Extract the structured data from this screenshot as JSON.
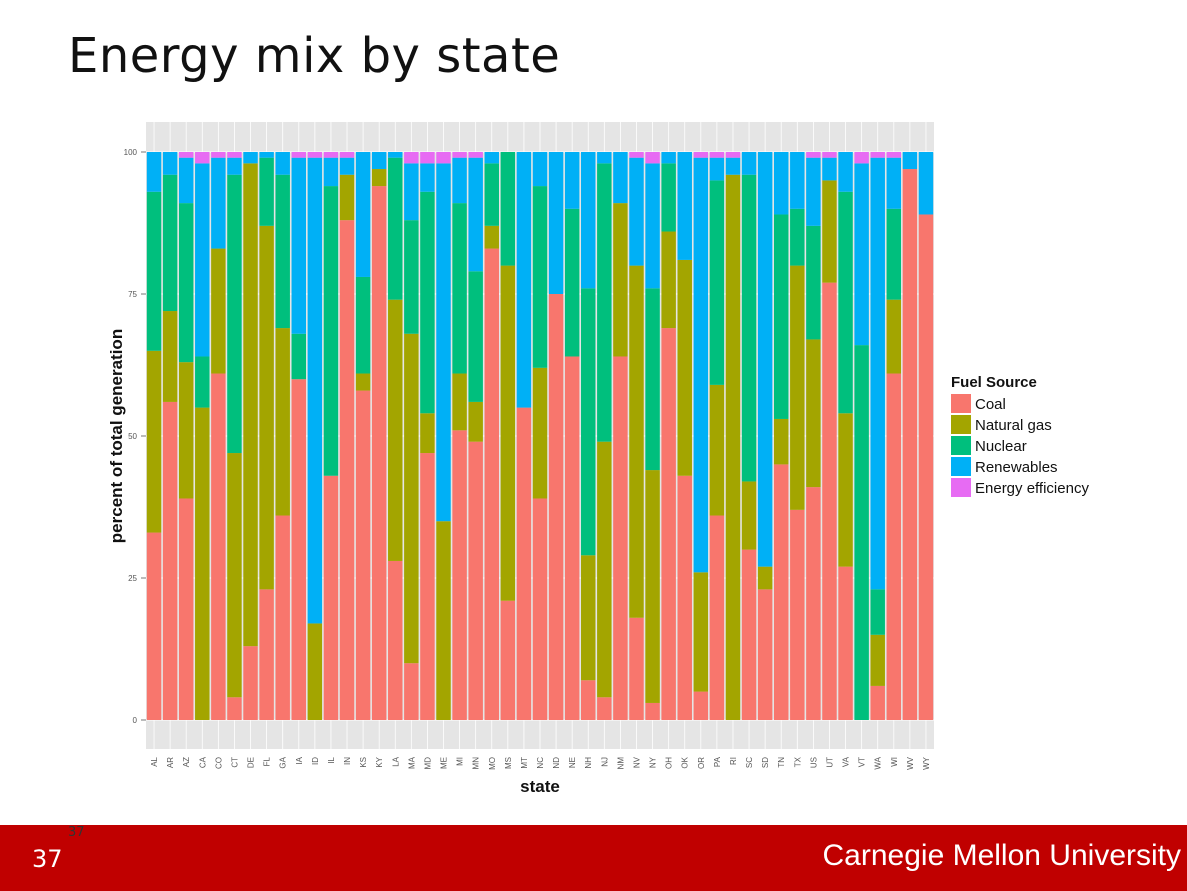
{
  "slide": {
    "title": "Energy mix by state",
    "page_number": "37",
    "page_number_small": "37",
    "brand": "Carnegie Mellon University"
  },
  "colors": {
    "coal": "#F8766D",
    "natural_gas": "#A3A500",
    "nuclear": "#00BF7D",
    "renewables": "#00B0F6",
    "energy_efficiency": "#E76BF3",
    "panel_bg": "#E5E5E5",
    "footer_bg": "#C00000"
  },
  "chart_data": {
    "type": "bar",
    "stacked": true,
    "title": "",
    "xlabel": "state",
    "ylabel": "percent of total generation",
    "ylim": [
      0,
      100
    ],
    "yticks": [
      0,
      25,
      50,
      75,
      100
    ],
    "legend_title": "Fuel Source",
    "legend_position": "right",
    "categories": [
      "AL",
      "AR",
      "AZ",
      "CA",
      "CO",
      "CT",
      "DE",
      "FL",
      "GA",
      "IA",
      "ID",
      "IL",
      "IN",
      "KS",
      "KY",
      "LA",
      "MA",
      "MD",
      "ME",
      "MI",
      "MN",
      "MO",
      "MS",
      "MT",
      "NC",
      "ND",
      "NE",
      "NH",
      "NJ",
      "NM",
      "NV",
      "NY",
      "OH",
      "OK",
      "OR",
      "PA",
      "RI",
      "SC",
      "SD",
      "TN",
      "TX",
      "US",
      "UT",
      "VA",
      "VT",
      "WA",
      "WI",
      "WV",
      "WY"
    ],
    "series": [
      {
        "name": "Coal",
        "values": [
          33,
          56,
          39,
          0,
          61,
          4,
          13,
          23,
          36,
          60,
          0,
          43,
          88,
          58,
          94,
          28,
          10,
          47,
          0,
          51,
          49,
          83,
          21,
          55,
          39,
          75,
          64,
          7,
          4,
          64,
          18,
          3,
          69,
          43,
          5,
          36,
          0,
          30,
          23,
          45,
          37,
          41,
          77,
          27,
          0,
          6,
          61,
          97,
          89
        ]
      },
      {
        "name": "Natural gas",
        "values": [
          32,
          16,
          24,
          55,
          22,
          43,
          85,
          64,
          33,
          0,
          17,
          0,
          8,
          3,
          3,
          46,
          58,
          7,
          35,
          10,
          7,
          4,
          59,
          0,
          23,
          0,
          0,
          22,
          45,
          27,
          62,
          41,
          17,
          38,
          21,
          23,
          96,
          12,
          4,
          8,
          43,
          26,
          18,
          27,
          0,
          9,
          13,
          0,
          0
        ]
      },
      {
        "name": "Nuclear",
        "values": [
          28,
          24,
          28,
          9,
          0,
          49,
          0,
          12,
          27,
          8,
          0,
          51,
          0,
          17,
          0,
          25,
          20,
          39,
          0,
          30,
          23,
          11,
          20,
          0,
          32,
          0,
          26,
          47,
          49,
          0,
          0,
          32,
          12,
          0,
          0,
          36,
          0,
          54,
          0,
          36,
          10,
          20,
          0,
          39,
          66,
          8,
          16,
          0,
          0
        ]
      },
      {
        "name": "Renewables",
        "values": [
          7,
          4,
          8,
          34,
          16,
          3,
          2,
          1,
          4,
          31,
          82,
          5,
          3,
          22,
          3,
          1,
          10,
          5,
          63,
          8,
          20,
          2,
          0,
          45,
          6,
          25,
          10,
          24,
          2,
          9,
          19,
          22,
          2,
          19,
          73,
          4,
          3,
          4,
          73,
          11,
          10,
          12,
          4,
          7,
          32,
          76,
          9,
          3,
          11
        ]
      },
      {
        "name": "Energy efficiency",
        "values": [
          0,
          0,
          1,
          2,
          1,
          1,
          0,
          0,
          0,
          1,
          1,
          1,
          1,
          0,
          0,
          0,
          2,
          2,
          2,
          1,
          1,
          0,
          0,
          0,
          0,
          0,
          0,
          0,
          0,
          0,
          1,
          2,
          0,
          0,
          1,
          1,
          1,
          0,
          0,
          0,
          0,
          1,
          1,
          0,
          2,
          1,
          1,
          0,
          0
        ]
      }
    ]
  }
}
